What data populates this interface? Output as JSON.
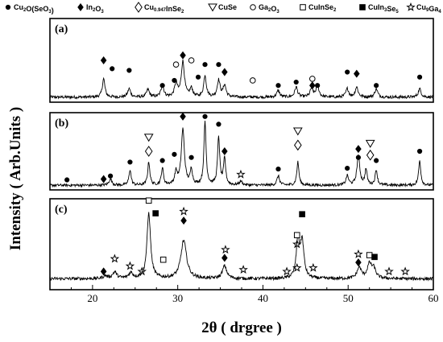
{
  "chart_data": {
    "type": "line",
    "xlabel": "2θ ( drgree )",
    "ylabel": "Intensity ( Arb.Units )",
    "xlim": [
      15,
      60
    ],
    "xticks": [
      20,
      30,
      40,
      50,
      60
    ],
    "grid": false,
    "legend_position": "top",
    "legend": [
      {
        "marker": "filled-circle",
        "parts": [
          [
            "Cu",
            false
          ],
          [
            "2",
            true
          ],
          [
            "O(SeO",
            false
          ],
          [
            "3",
            true
          ],
          [
            ")",
            false
          ]
        ],
        "text": "Cu2O(SeO3)"
      },
      {
        "marker": "filled-diamond",
        "parts": [
          [
            "In",
            false
          ],
          [
            "2",
            true
          ],
          [
            "O",
            false
          ],
          [
            "3",
            true
          ]
        ],
        "text": "In2O3"
      },
      {
        "marker": "open-diamond",
        "parts": [
          [
            "Cu",
            false
          ],
          [
            "0.947",
            true
          ],
          [
            "InSe",
            false
          ],
          [
            "2",
            true
          ]
        ],
        "text": "Cu0.947InSe2"
      },
      {
        "marker": "open-triangle-down",
        "parts": [
          [
            "CuSe",
            false
          ]
        ],
        "text": "CuSe"
      },
      {
        "marker": "open-circle",
        "parts": [
          [
            "Ga",
            false
          ],
          [
            "2",
            true
          ],
          [
            "O",
            false
          ],
          [
            "3",
            true
          ]
        ],
        "text": "Ga2O3"
      },
      {
        "marker": "open-square",
        "parts": [
          [
            "CuInSe",
            false
          ],
          [
            "2",
            true
          ]
        ],
        "text": "CuInSe2"
      },
      {
        "marker": "filled-square",
        "parts": [
          [
            "CuIn",
            false
          ],
          [
            "3",
            true
          ],
          [
            "Se",
            false
          ],
          [
            "5",
            true
          ]
        ],
        "text": "CuIn3Se5"
      },
      {
        "marker": "open-star",
        "parts": [
          [
            "Cu",
            false
          ],
          [
            "9",
            true
          ],
          [
            "Ga",
            false
          ],
          [
            "4",
            true
          ]
        ],
        "text": "Cu9Ga4"
      }
    ],
    "panels": [
      {
        "label": "(a)",
        "baseline": 0.06,
        "peaks": [
          {
            "x": 21.3,
            "h": 0.22,
            "w": 0.18
          },
          {
            "x": 24.3,
            "h": 0.1,
            "w": 0.2
          },
          {
            "x": 26.5,
            "h": 0.09,
            "w": 0.2
          },
          {
            "x": 28.2,
            "h": 0.14,
            "w": 0.2
          },
          {
            "x": 29.8,
            "h": 0.16,
            "w": 0.2
          },
          {
            "x": 30.6,
            "h": 0.42,
            "w": 0.22
          },
          {
            "x": 31.6,
            "h": 0.1,
            "w": 0.2
          },
          {
            "x": 33.2,
            "h": 0.26,
            "w": 0.18
          },
          {
            "x": 34.8,
            "h": 0.2,
            "w": 0.2
          },
          {
            "x": 35.5,
            "h": 0.14,
            "w": 0.2
          },
          {
            "x": 41.8,
            "h": 0.08,
            "w": 0.2
          },
          {
            "x": 43.9,
            "h": 0.12,
            "w": 0.2
          },
          {
            "x": 45.7,
            "h": 0.1,
            "w": 0.2
          },
          {
            "x": 46.4,
            "h": 0.14,
            "w": 0.2
          },
          {
            "x": 49.9,
            "h": 0.1,
            "w": 0.2
          },
          {
            "x": 51.0,
            "h": 0.12,
            "w": 0.2
          },
          {
            "x": 53.3,
            "h": 0.1,
            "w": 0.2
          },
          {
            "x": 58.4,
            "h": 0.1,
            "w": 0.2
          }
        ],
        "markers": [
          {
            "type": "filled-diamond",
            "x": 21.3,
            "y": 0.5
          },
          {
            "type": "filled-circle",
            "x": 22.3,
            "y": 0.4
          },
          {
            "type": "filled-circle",
            "x": 24.3,
            "y": 0.38
          },
          {
            "type": "filled-circle",
            "x": 28.2,
            "y": 0.2
          },
          {
            "type": "filled-circle",
            "x": 29.6,
            "y": 0.26
          },
          {
            "type": "open-circle",
            "x": 29.8,
            "y": 0.45
          },
          {
            "type": "filled-diamond",
            "x": 30.6,
            "y": 0.56
          },
          {
            "type": "open-circle",
            "x": 31.6,
            "y": 0.5
          },
          {
            "type": "filled-circle",
            "x": 32.4,
            "y": 0.3
          },
          {
            "type": "filled-circle",
            "x": 33.2,
            "y": 0.45
          },
          {
            "type": "filled-circle",
            "x": 34.8,
            "y": 0.45
          },
          {
            "type": "filled-diamond",
            "x": 35.5,
            "y": 0.36
          },
          {
            "type": "open-circle",
            "x": 38.8,
            "y": 0.26
          },
          {
            "type": "filled-circle",
            "x": 41.8,
            "y": 0.2
          },
          {
            "type": "filled-circle",
            "x": 43.9,
            "y": 0.24
          },
          {
            "type": "open-circle",
            "x": 45.8,
            "y": 0.28
          },
          {
            "type": "filled-diamond",
            "x": 45.8,
            "y": 0.2
          },
          {
            "type": "filled-circle",
            "x": 46.4,
            "y": 0.2
          },
          {
            "type": "filled-circle",
            "x": 49.9,
            "y": 0.36
          },
          {
            "type": "filled-diamond",
            "x": 51.0,
            "y": 0.34
          },
          {
            "type": "filled-circle",
            "x": 53.3,
            "y": 0.2
          },
          {
            "type": "filled-circle",
            "x": 58.4,
            "y": 0.3
          }
        ]
      },
      {
        "label": "(b)",
        "baseline": 0.06,
        "peaks": [
          {
            "x": 22.1,
            "h": 0.08,
            "w": 0.2
          },
          {
            "x": 24.4,
            "h": 0.2,
            "w": 0.15
          },
          {
            "x": 26.6,
            "h": 0.3,
            "w": 0.15
          },
          {
            "x": 28.2,
            "h": 0.22,
            "w": 0.15
          },
          {
            "x": 29.8,
            "h": 0.16,
            "w": 0.18
          },
          {
            "x": 30.6,
            "h": 0.72,
            "w": 0.22
          },
          {
            "x": 31.6,
            "h": 0.2,
            "w": 0.15
          },
          {
            "x": 33.2,
            "h": 0.82,
            "w": 0.15
          },
          {
            "x": 34.8,
            "h": 0.62,
            "w": 0.15
          },
          {
            "x": 35.5,
            "h": 0.34,
            "w": 0.15
          },
          {
            "x": 37.4,
            "h": 0.05,
            "w": 0.2
          },
          {
            "x": 41.8,
            "h": 0.12,
            "w": 0.18
          },
          {
            "x": 44.1,
            "h": 0.3,
            "w": 0.15
          },
          {
            "x": 49.9,
            "h": 0.12,
            "w": 0.18
          },
          {
            "x": 51.2,
            "h": 0.38,
            "w": 0.2
          },
          {
            "x": 52.1,
            "h": 0.2,
            "w": 0.15
          },
          {
            "x": 53.3,
            "h": 0.2,
            "w": 0.15
          },
          {
            "x": 58.4,
            "h": 0.32,
            "w": 0.15
          }
        ],
        "markers": [
          {
            "type": "filled-circle",
            "x": 17.0,
            "y": 0.13
          },
          {
            "type": "filled-diamond",
            "x": 21.3,
            "y": 0.14
          },
          {
            "type": "filled-circle",
            "x": 22.1,
            "y": 0.18
          },
          {
            "type": "filled-circle",
            "x": 24.4,
            "y": 0.36
          },
          {
            "type": "open-triangle-down",
            "x": 26.6,
            "y": 0.68
          },
          {
            "type": "open-diamond",
            "x": 26.6,
            "y": 0.5
          },
          {
            "type": "filled-circle",
            "x": 28.2,
            "y": 0.38
          },
          {
            "type": "filled-circle",
            "x": 29.6,
            "y": 0.46
          },
          {
            "type": "filled-diamond",
            "x": 30.6,
            "y": 0.95
          },
          {
            "type": "filled-circle",
            "x": 31.6,
            "y": 0.42
          },
          {
            "type": "filled-circle",
            "x": 33.2,
            "y": 0.95
          },
          {
            "type": "filled-circle",
            "x": 34.8,
            "y": 0.85
          },
          {
            "type": "filled-diamond",
            "x": 35.5,
            "y": 0.5
          },
          {
            "type": "open-star",
            "x": 37.4,
            "y": 0.2
          },
          {
            "type": "filled-circle",
            "x": 41.8,
            "y": 0.27
          },
          {
            "type": "open-triangle-down",
            "x": 44.1,
            "y": 0.76
          },
          {
            "type": "open-diamond",
            "x": 44.1,
            "y": 0.58
          },
          {
            "type": "filled-circle",
            "x": 49.9,
            "y": 0.28
          },
          {
            "type": "filled-diamond",
            "x": 51.2,
            "y": 0.53
          },
          {
            "type": "filled-circle",
            "x": 51.2,
            "y": 0.42
          },
          {
            "type": "open-triangle-down",
            "x": 52.6,
            "y": 0.6
          },
          {
            "type": "open-diamond",
            "x": 52.6,
            "y": 0.45
          },
          {
            "type": "filled-circle",
            "x": 53.3,
            "y": 0.38
          },
          {
            "type": "filled-circle",
            "x": 58.4,
            "y": 0.5
          }
        ]
      },
      {
        "label": "(c)",
        "baseline": 0.12,
        "peaks": [
          {
            "x": 21.5,
            "h": 0.03,
            "w": 0.3
          },
          {
            "x": 22.6,
            "h": 0.07,
            "w": 0.3
          },
          {
            "x": 24.5,
            "h": 0.06,
            "w": 0.3
          },
          {
            "x": 26.6,
            "h": 0.72,
            "w": 0.25
          },
          {
            "x": 30.7,
            "h": 0.42,
            "w": 0.4
          },
          {
            "x": 35.5,
            "h": 0.14,
            "w": 0.3
          },
          {
            "x": 44.1,
            "h": 0.42,
            "w": 0.22
          },
          {
            "x": 44.6,
            "h": 0.4,
            "w": 0.25
          },
          {
            "x": 51.3,
            "h": 0.12,
            "w": 0.3
          },
          {
            "x": 52.5,
            "h": 0.15,
            "w": 0.3
          },
          {
            "x": 53.0,
            "h": 0.1,
            "w": 0.3
          }
        ],
        "markers": [
          {
            "type": "filled-diamond",
            "x": 21.3,
            "y": 0.2
          },
          {
            "type": "open-star",
            "x": 22.6,
            "y": 0.34
          },
          {
            "type": "open-star",
            "x": 24.4,
            "y": 0.26
          },
          {
            "type": "open-star",
            "x": 25.8,
            "y": 0.2
          },
          {
            "type": "open-square",
            "x": 26.6,
            "y": 0.98
          },
          {
            "type": "filled-square",
            "x": 27.4,
            "y": 0.84
          },
          {
            "type": "open-square",
            "x": 28.3,
            "y": 0.33
          },
          {
            "type": "open-star",
            "x": 30.7,
            "y": 0.86
          },
          {
            "type": "filled-diamond",
            "x": 30.7,
            "y": 0.76
          },
          {
            "type": "open-star",
            "x": 35.6,
            "y": 0.44
          },
          {
            "type": "filled-diamond",
            "x": 35.5,
            "y": 0.35
          },
          {
            "type": "open-star",
            "x": 37.7,
            "y": 0.22
          },
          {
            "type": "open-star",
            "x": 42.8,
            "y": 0.2
          },
          {
            "type": "open-star",
            "x": 44.0,
            "y": 0.24
          },
          {
            "type": "open-square",
            "x": 44.0,
            "y": 0.6
          },
          {
            "type": "open-star",
            "x": 44.0,
            "y": 0.5
          },
          {
            "type": "filled-square",
            "x": 44.6,
            "y": 0.83
          },
          {
            "type": "open-star",
            "x": 45.9,
            "y": 0.24
          },
          {
            "type": "open-star",
            "x": 51.2,
            "y": 0.39
          },
          {
            "type": "filled-diamond",
            "x": 51.2,
            "y": 0.3
          },
          {
            "type": "open-square",
            "x": 52.5,
            "y": 0.38
          },
          {
            "type": "filled-square",
            "x": 53.1,
            "y": 0.36
          },
          {
            "type": "open-star",
            "x": 54.8,
            "y": 0.2
          },
          {
            "type": "open-star",
            "x": 56.7,
            "y": 0.2
          }
        ]
      }
    ]
  }
}
